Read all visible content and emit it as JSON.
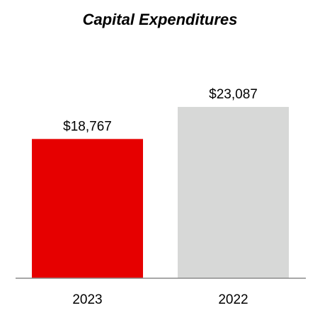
{
  "chart_data": {
    "type": "bar",
    "title": "Capital Expenditures",
    "categories": [
      "2023",
      "2022"
    ],
    "values": [
      18767,
      23087
    ],
    "value_labels": [
      "$18,767",
      "$23,087"
    ],
    "colors": [
      "#e60000",
      "#d7d8d7"
    ],
    "axis_color": "#8c8c8c",
    "xlabel": "",
    "ylabel": "",
    "ylim": [
      0,
      25000
    ],
    "grid": false,
    "legend": "none"
  }
}
